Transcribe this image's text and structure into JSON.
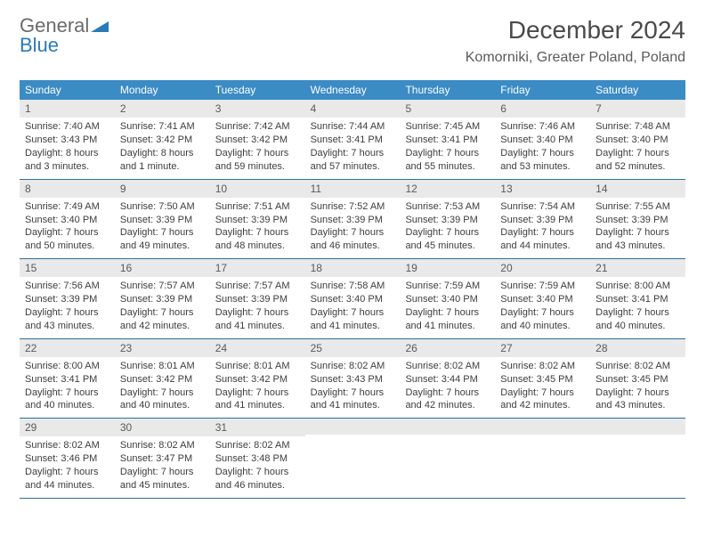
{
  "brand": {
    "word1": "General",
    "word2": "Blue"
  },
  "title": "December 2024",
  "location": "Komorniki, Greater Poland, Poland",
  "colors": {
    "header_bar": "#3b8bc4",
    "week_divider": "#2a6fa3",
    "daynum_bg": "#e9e9e9",
    "text": "#333333",
    "logo_gray": "#6b6b6b",
    "logo_blue": "#2a7ab8"
  },
  "weekdays": [
    "Sunday",
    "Monday",
    "Tuesday",
    "Wednesday",
    "Thursday",
    "Friday",
    "Saturday"
  ],
  "weeks": [
    [
      {
        "n": "1",
        "sr": "Sunrise: 7:40 AM",
        "ss": "Sunset: 3:43 PM",
        "d1": "Daylight: 8 hours",
        "d2": "and 3 minutes."
      },
      {
        "n": "2",
        "sr": "Sunrise: 7:41 AM",
        "ss": "Sunset: 3:42 PM",
        "d1": "Daylight: 8 hours",
        "d2": "and 1 minute."
      },
      {
        "n": "3",
        "sr": "Sunrise: 7:42 AM",
        "ss": "Sunset: 3:42 PM",
        "d1": "Daylight: 7 hours",
        "d2": "and 59 minutes."
      },
      {
        "n": "4",
        "sr": "Sunrise: 7:44 AM",
        "ss": "Sunset: 3:41 PM",
        "d1": "Daylight: 7 hours",
        "d2": "and 57 minutes."
      },
      {
        "n": "5",
        "sr": "Sunrise: 7:45 AM",
        "ss": "Sunset: 3:41 PM",
        "d1": "Daylight: 7 hours",
        "d2": "and 55 minutes."
      },
      {
        "n": "6",
        "sr": "Sunrise: 7:46 AM",
        "ss": "Sunset: 3:40 PM",
        "d1": "Daylight: 7 hours",
        "d2": "and 53 minutes."
      },
      {
        "n": "7",
        "sr": "Sunrise: 7:48 AM",
        "ss": "Sunset: 3:40 PM",
        "d1": "Daylight: 7 hours",
        "d2": "and 52 minutes."
      }
    ],
    [
      {
        "n": "8",
        "sr": "Sunrise: 7:49 AM",
        "ss": "Sunset: 3:40 PM",
        "d1": "Daylight: 7 hours",
        "d2": "and 50 minutes."
      },
      {
        "n": "9",
        "sr": "Sunrise: 7:50 AM",
        "ss": "Sunset: 3:39 PM",
        "d1": "Daylight: 7 hours",
        "d2": "and 49 minutes."
      },
      {
        "n": "10",
        "sr": "Sunrise: 7:51 AM",
        "ss": "Sunset: 3:39 PM",
        "d1": "Daylight: 7 hours",
        "d2": "and 48 minutes."
      },
      {
        "n": "11",
        "sr": "Sunrise: 7:52 AM",
        "ss": "Sunset: 3:39 PM",
        "d1": "Daylight: 7 hours",
        "d2": "and 46 minutes."
      },
      {
        "n": "12",
        "sr": "Sunrise: 7:53 AM",
        "ss": "Sunset: 3:39 PM",
        "d1": "Daylight: 7 hours",
        "d2": "and 45 minutes."
      },
      {
        "n": "13",
        "sr": "Sunrise: 7:54 AM",
        "ss": "Sunset: 3:39 PM",
        "d1": "Daylight: 7 hours",
        "d2": "and 44 minutes."
      },
      {
        "n": "14",
        "sr": "Sunrise: 7:55 AM",
        "ss": "Sunset: 3:39 PM",
        "d1": "Daylight: 7 hours",
        "d2": "and 43 minutes."
      }
    ],
    [
      {
        "n": "15",
        "sr": "Sunrise: 7:56 AM",
        "ss": "Sunset: 3:39 PM",
        "d1": "Daylight: 7 hours",
        "d2": "and 43 minutes."
      },
      {
        "n": "16",
        "sr": "Sunrise: 7:57 AM",
        "ss": "Sunset: 3:39 PM",
        "d1": "Daylight: 7 hours",
        "d2": "and 42 minutes."
      },
      {
        "n": "17",
        "sr": "Sunrise: 7:57 AM",
        "ss": "Sunset: 3:39 PM",
        "d1": "Daylight: 7 hours",
        "d2": "and 41 minutes."
      },
      {
        "n": "18",
        "sr": "Sunrise: 7:58 AM",
        "ss": "Sunset: 3:40 PM",
        "d1": "Daylight: 7 hours",
        "d2": "and 41 minutes."
      },
      {
        "n": "19",
        "sr": "Sunrise: 7:59 AM",
        "ss": "Sunset: 3:40 PM",
        "d1": "Daylight: 7 hours",
        "d2": "and 41 minutes."
      },
      {
        "n": "20",
        "sr": "Sunrise: 7:59 AM",
        "ss": "Sunset: 3:40 PM",
        "d1": "Daylight: 7 hours",
        "d2": "and 40 minutes."
      },
      {
        "n": "21",
        "sr": "Sunrise: 8:00 AM",
        "ss": "Sunset: 3:41 PM",
        "d1": "Daylight: 7 hours",
        "d2": "and 40 minutes."
      }
    ],
    [
      {
        "n": "22",
        "sr": "Sunrise: 8:00 AM",
        "ss": "Sunset: 3:41 PM",
        "d1": "Daylight: 7 hours",
        "d2": "and 40 minutes."
      },
      {
        "n": "23",
        "sr": "Sunrise: 8:01 AM",
        "ss": "Sunset: 3:42 PM",
        "d1": "Daylight: 7 hours",
        "d2": "and 40 minutes."
      },
      {
        "n": "24",
        "sr": "Sunrise: 8:01 AM",
        "ss": "Sunset: 3:42 PM",
        "d1": "Daylight: 7 hours",
        "d2": "and 41 minutes."
      },
      {
        "n": "25",
        "sr": "Sunrise: 8:02 AM",
        "ss": "Sunset: 3:43 PM",
        "d1": "Daylight: 7 hours",
        "d2": "and 41 minutes."
      },
      {
        "n": "26",
        "sr": "Sunrise: 8:02 AM",
        "ss": "Sunset: 3:44 PM",
        "d1": "Daylight: 7 hours",
        "d2": "and 42 minutes."
      },
      {
        "n": "27",
        "sr": "Sunrise: 8:02 AM",
        "ss": "Sunset: 3:45 PM",
        "d1": "Daylight: 7 hours",
        "d2": "and 42 minutes."
      },
      {
        "n": "28",
        "sr": "Sunrise: 8:02 AM",
        "ss": "Sunset: 3:45 PM",
        "d1": "Daylight: 7 hours",
        "d2": "and 43 minutes."
      }
    ],
    [
      {
        "n": "29",
        "sr": "Sunrise: 8:02 AM",
        "ss": "Sunset: 3:46 PM",
        "d1": "Daylight: 7 hours",
        "d2": "and 44 minutes."
      },
      {
        "n": "30",
        "sr": "Sunrise: 8:02 AM",
        "ss": "Sunset: 3:47 PM",
        "d1": "Daylight: 7 hours",
        "d2": "and 45 minutes."
      },
      {
        "n": "31",
        "sr": "Sunrise: 8:02 AM",
        "ss": "Sunset: 3:48 PM",
        "d1": "Daylight: 7 hours",
        "d2": "and 46 minutes."
      },
      {
        "empty": true
      },
      {
        "empty": true
      },
      {
        "empty": true
      },
      {
        "empty": true
      }
    ]
  ]
}
